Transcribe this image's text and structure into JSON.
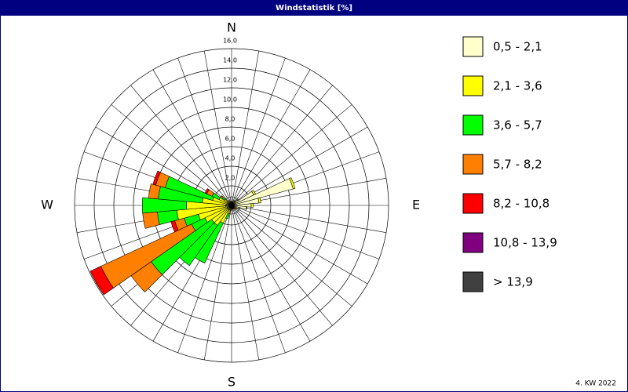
{
  "chart_data": {
    "type": "windrose",
    "title": "Windstatistik [%]",
    "footnote": "4. KW 2022",
    "categories": [
      "N",
      null,
      null,
      null,
      null,
      null,
      null,
      null,
      null,
      "E",
      null,
      null,
      null,
      null,
      null,
      null,
      null,
      null,
      "S",
      null,
      null,
      null,
      null,
      null,
      null,
      null,
      null,
      "W",
      null,
      null,
      null,
      null,
      null,
      null,
      null,
      null
    ],
    "rlim": [
      0,
      16
    ],
    "rticks": [
      {
        "value": 2,
        "label": "2,0"
      },
      {
        "value": 4,
        "label": "4,0"
      },
      {
        "value": 6,
        "label": "6,0"
      },
      {
        "value": 8,
        "label": "8,0"
      },
      {
        "value": 10,
        "label": "10,0"
      },
      {
        "value": 12,
        "label": "12,0"
      },
      {
        "value": 14,
        "label": "14,0"
      },
      {
        "value": 16,
        "label": "16,0"
      }
    ],
    "series": [
      {
        "name": "0,5 - 2,1",
        "color": "#ffffcc",
        "values": [
          0.3,
          0.3,
          0.3,
          0.4,
          0.5,
          0.8,
          2.5,
          6.5,
          2.8,
          2.0,
          1.5,
          0.8,
          0.5,
          0.4,
          0.3,
          0.3,
          0.3,
          0.3,
          0.3,
          0.3,
          0.4,
          0.5,
          0.5,
          0.5,
          0.5,
          0.5,
          0.6,
          0.6,
          0.5,
          0.5,
          0.4,
          0.4,
          0.3,
          0.3,
          0.3,
          0.3
        ]
      },
      {
        "name": "2,1 - 3,6",
        "color": "#ffff00",
        "values": [
          0.1,
          0.1,
          0.1,
          0.1,
          0.1,
          0.1,
          0.2,
          0.2,
          0.2,
          0.2,
          0.1,
          0.1,
          0.1,
          0.1,
          0.1,
          0.1,
          0.1,
          0.1,
          0.2,
          0.2,
          0.5,
          1.5,
          2.0,
          2.0,
          2.5,
          3.0,
          5.0,
          4.0,
          2.5,
          1.5,
          1.0,
          0.5,
          0.3,
          0.2,
          0.1,
          0.1
        ]
      },
      {
        "name": "3,6 - 5,7",
        "color": "#00ff00",
        "values": [
          0,
          0,
          0,
          0,
          0,
          0,
          0,
          0,
          0,
          0,
          0,
          0,
          0,
          0,
          0,
          0,
          0,
          0,
          0,
          0,
          0.5,
          4.5,
          5.0,
          7.5,
          1.5,
          1.5,
          2.0,
          4.5,
          4.5,
          5.0,
          0.8,
          0.3,
          0,
          0,
          0,
          0
        ]
      },
      {
        "name": "5,7 - 8,2",
        "color": "#ff8000",
        "values": [
          0,
          0,
          0,
          0,
          0,
          0,
          0,
          0,
          0,
          0,
          0,
          0,
          0,
          0,
          0,
          0,
          0,
          0,
          0,
          0,
          0,
          0,
          0,
          2.5,
          10.2,
          1.0,
          1.5,
          0,
          1.0,
          1.0,
          0.6,
          0.2,
          0,
          0,
          0,
          0
        ]
      },
      {
        "name": "8,2 - 10,8",
        "color": "#ff0000",
        "values": [
          0,
          0,
          0,
          0,
          0,
          0,
          0,
          0,
          0,
          0,
          0,
          0,
          0,
          0,
          0,
          0,
          0,
          0,
          0,
          0,
          0,
          0,
          0,
          0,
          1.2,
          0.4,
          0,
          0,
          0,
          0.3,
          0.2,
          0,
          0,
          0,
          0,
          0
        ]
      },
      {
        "name": "10,8 - 13,9",
        "color": "#800080",
        "values": [
          0,
          0,
          0,
          0,
          0,
          0,
          0,
          0,
          0,
          0,
          0,
          0,
          0,
          0,
          0,
          0,
          0,
          0,
          0,
          0,
          0,
          0,
          0,
          0,
          0,
          0,
          0,
          0,
          0,
          0,
          0,
          0,
          0,
          0,
          0,
          0
        ]
      },
      {
        "name": " > 13,9",
        "color": "#404040",
        "values": [
          0,
          0,
          0,
          0,
          0,
          0,
          0,
          0,
          0,
          0,
          0,
          0,
          0,
          0,
          0,
          0,
          0,
          0,
          0,
          0,
          0,
          0,
          0,
          0,
          0,
          0,
          0,
          0,
          0,
          0,
          0,
          0,
          0,
          0,
          0,
          0
        ]
      }
    ]
  }
}
